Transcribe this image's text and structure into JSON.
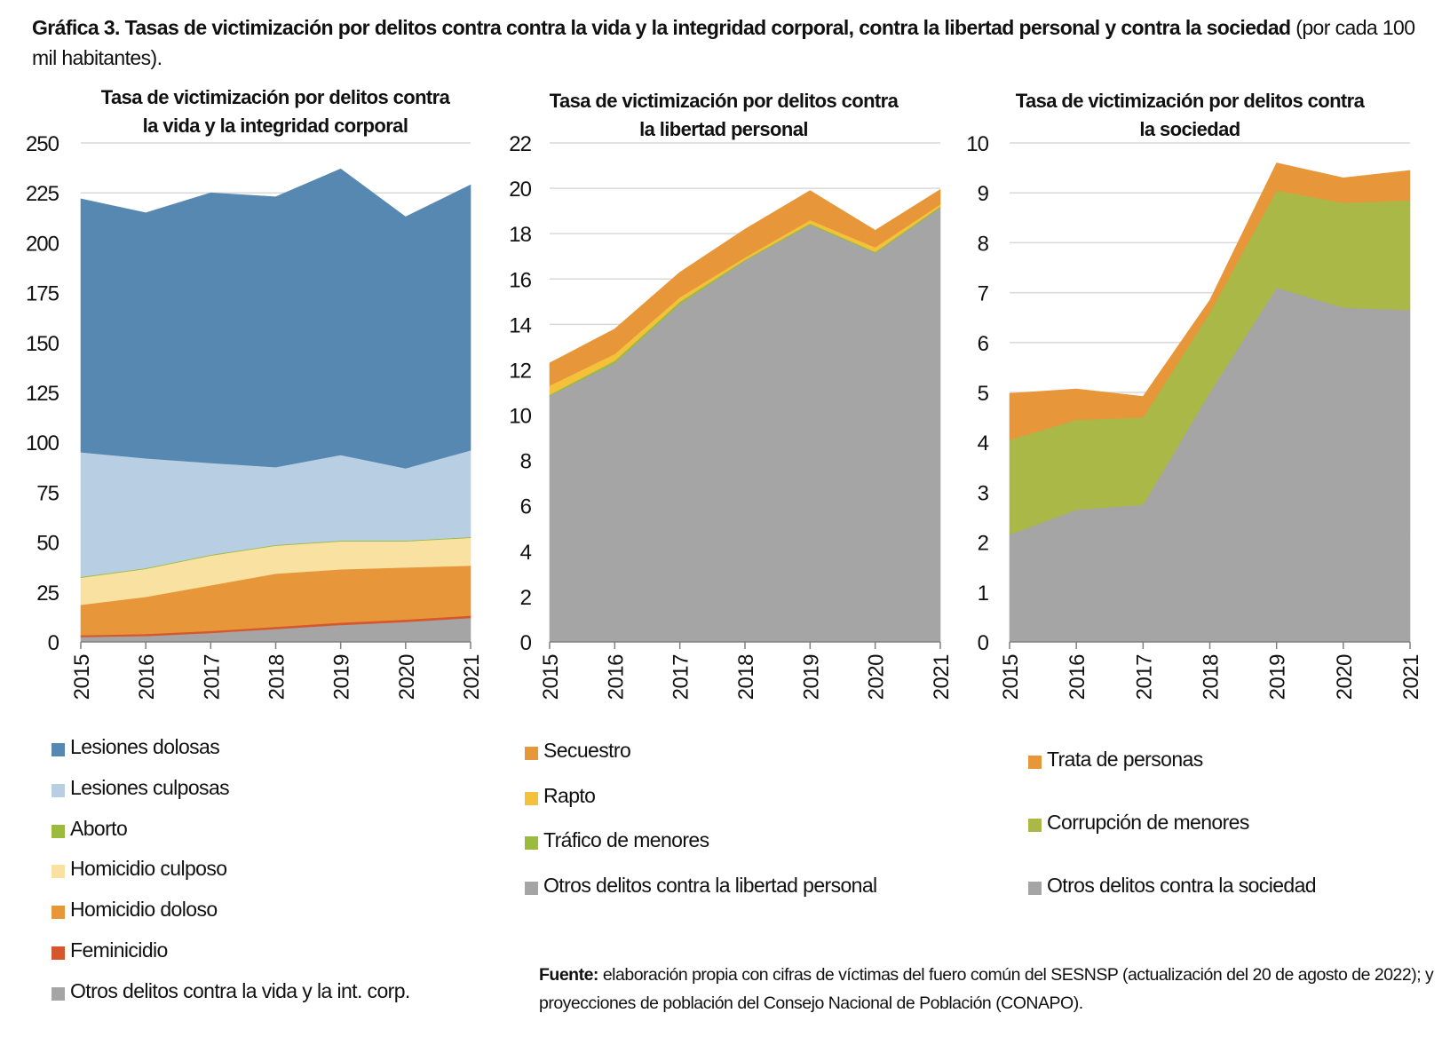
{
  "title": {
    "bold": "Gráfica 3. Tasas de victimización por delitos contra contra la vida y la integridad corporal, contra la libertad personal y contra la sociedad",
    "normal": " (por cada 100 mil habitantes)."
  },
  "source": {
    "label": "Fuente:",
    "text": " elaboración propia con cifras de víctimas del fuero común del SESNSP (actualización del 20 de agosto de 2022); y proyecciones de población del Consejo Nacional de Población (CONAPO)."
  },
  "chart_data": [
    {
      "type": "area",
      "stacked": true,
      "title_lines": [
        "Tasa de victimización por  delitos contra",
        "la vida y la integridad corporal"
      ],
      "xlabel": "",
      "ylabel": "",
      "x": [
        "2015",
        "2016",
        "2017",
        "2018",
        "2019",
        "2020",
        "2021"
      ],
      "ylim": [
        0,
        250
      ],
      "yticks": [
        0,
        25,
        50,
        75,
        100,
        125,
        150,
        175,
        200,
        225,
        250
      ],
      "grid": true,
      "legend_position": "bottom",
      "series": [
        {
          "name": "Otros delitos contra la vida y la int. corp.",
          "color": "#a5a5a5",
          "values": [
            2.5,
            3.0,
            4.5,
            6.5,
            8.5,
            10.0,
            12.0
          ]
        },
        {
          "name": "Feminicidio",
          "color": "#d6572e",
          "values": [
            0.9,
            1.0,
            1.0,
            1.1,
            1.2,
            1.2,
            1.2
          ]
        },
        {
          "name": "Homicidio doloso",
          "color": "#e7973a",
          "values": [
            15.2,
            18.6,
            22.9,
            26.6,
            26.7,
            26.1,
            25.0
          ]
        },
        {
          "name": "Homicidio culposo",
          "color": "#f8e1a1",
          "values": [
            13.6,
            14.0,
            14.9,
            14.0,
            14.0,
            13.1,
            14.0
          ]
        },
        {
          "name": "Aborto",
          "color": "#9bbb3f",
          "values": [
            0.4,
            0.4,
            0.4,
            0.4,
            0.4,
            0.4,
            0.4
          ]
        },
        {
          "name": "Lesiones culposas",
          "color": "#b8cfe3",
          "values": [
            62.4,
            55.0,
            46.0,
            39.0,
            42.9,
            36.2,
            43.4
          ]
        },
        {
          "name": "Lesiones dolosas",
          "color": "#5788b1",
          "values": [
            127.0,
            123.0,
            135.3,
            135.4,
            143.3,
            126.0,
            133.0
          ]
        }
      ],
      "legend_order": [
        "Lesiones dolosas",
        "Lesiones culposas",
        "Aborto",
        "Homicidio culposo",
        "Homicidio doloso",
        "Feminicidio",
        "Otros delitos contra la vida y la int. corp."
      ]
    },
    {
      "type": "area",
      "stacked": true,
      "title_lines": [
        "Tasa de victimización por delitos contra",
        "la libertad personal"
      ],
      "xlabel": "",
      "ylabel": "",
      "x": [
        "2015",
        "2016",
        "2017",
        "2018",
        "2019",
        "2020",
        "2021"
      ],
      "ylim": [
        0,
        22
      ],
      "yticks": [
        0,
        2,
        4,
        6,
        8,
        10,
        12,
        14,
        16,
        18,
        20,
        22
      ],
      "grid": true,
      "legend_position": "bottom",
      "series": [
        {
          "name": "Otros delitos contra la libertad personal",
          "color": "#a5a5a5",
          "values": [
            10.85,
            12.3,
            14.9,
            16.8,
            18.4,
            17.15,
            19.15
          ]
        },
        {
          "name": "Tráfico de menores",
          "color": "#9bbb3f",
          "values": [
            0.05,
            0.1,
            0.1,
            0.05,
            0.05,
            0.05,
            0.05
          ]
        },
        {
          "name": "Rapto",
          "color": "#f3c13a",
          "values": [
            0.4,
            0.3,
            0.2,
            0.1,
            0.15,
            0.2,
            0.1
          ]
        },
        {
          "name": "Secuestro",
          "color": "#e7973a",
          "values": [
            1.0,
            1.1,
            1.1,
            1.25,
            1.3,
            0.75,
            0.65
          ]
        }
      ],
      "legend_order": [
        "Secuestro",
        "Rapto",
        "Tráfico de menores",
        "Otros delitos contra la libertad personal"
      ]
    },
    {
      "type": "area",
      "stacked": true,
      "title_lines": [
        "Tasa de victimización por delitos contra",
        "la sociedad"
      ],
      "xlabel": "",
      "ylabel": "",
      "x": [
        "2015",
        "2016",
        "2017",
        "2018",
        "2019",
        "2020",
        "2021"
      ],
      "ylim": [
        0,
        10
      ],
      "yticks": [
        0,
        1,
        2,
        3,
        4,
        5,
        6,
        7,
        8,
        9,
        10
      ],
      "grid": true,
      "legend_position": "bottom",
      "series": [
        {
          "name": "Otros delitos contra la sociedad",
          "color": "#a5a5a5",
          "values": [
            2.15,
            2.65,
            2.75,
            5.0,
            7.1,
            6.7,
            6.65
          ]
        },
        {
          "name": "Corrupción de menores",
          "color": "#a9b846",
          "values": [
            1.9,
            1.8,
            1.75,
            1.6,
            1.95,
            2.1,
            2.2
          ]
        },
        {
          "name": "Trata de personas",
          "color": "#e7973a",
          "values": [
            0.93,
            0.62,
            0.42,
            0.25,
            0.55,
            0.5,
            0.6
          ]
        }
      ],
      "legend_order": [
        "Trata de personas",
        "Corrupción de menores",
        "Otros delitos contra la sociedad"
      ]
    }
  ]
}
